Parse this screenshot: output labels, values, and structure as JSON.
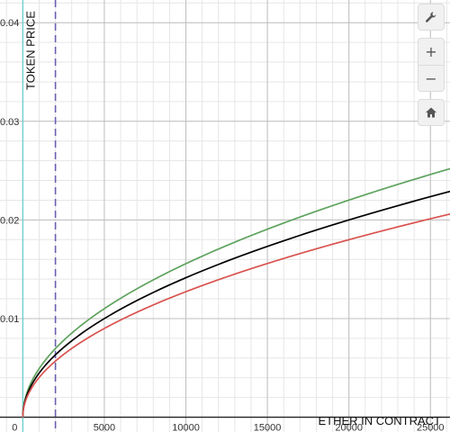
{
  "chart_data": {
    "type": "line",
    "xlabel": "ETHER IN CONTRACT",
    "ylabel": "TOKEN PRICE",
    "xlim": [
      -1400,
      26200
    ],
    "ylim": [
      -0.0015,
      0.0423
    ],
    "x_ticks": [
      {
        "value": 0,
        "label": "0"
      },
      {
        "value": 5000,
        "label": "5000"
      },
      {
        "value": 10000,
        "label": "10000"
      },
      {
        "value": 15000,
        "label": "15000"
      },
      {
        "value": 20000,
        "label": "20000"
      },
      {
        "value": 25000,
        "label": "25000"
      }
    ],
    "y_ticks": [
      {
        "value": 0.01,
        "label": "0.01"
      },
      {
        "value": 0.02,
        "label": "0.02"
      },
      {
        "value": 0.03,
        "label": "0.03"
      },
      {
        "value": 0.04,
        "label": "0.04"
      }
    ],
    "grid": true,
    "minor_grid_step_x": 1000,
    "minor_grid_step_y": 0.002,
    "series": [
      {
        "color": "#5ea35e",
        "x": [
          0,
          100,
          500,
          1000,
          2000,
          5000,
          10000,
          15000,
          20000,
          25000,
          26200
        ],
        "y": [
          0,
          0.00155,
          0.00348,
          0.00492,
          0.00696,
          0.011,
          0.01556,
          0.01906,
          0.02201,
          0.02461,
          0.0252
        ]
      },
      {
        "color": "#000000",
        "x": [
          0,
          100,
          500,
          1000,
          2000,
          5000,
          10000,
          15000,
          20000,
          25000,
          26200
        ],
        "y": [
          0,
          0.00141,
          0.00316,
          0.00447,
          0.00632,
          0.01,
          0.01414,
          0.01732,
          0.02,
          0.02236,
          0.0229
        ]
      },
      {
        "color": "#d9534f",
        "x": [
          0,
          100,
          500,
          1000,
          2000,
          5000,
          10000,
          15000,
          20000,
          25000,
          26200
        ],
        "y": [
          0,
          0.00127,
          0.00285,
          0.00402,
          0.00569,
          0.009,
          0.01273,
          0.01559,
          0.018,
          0.02012,
          0.0206
        ]
      }
    ],
    "vertical_markers": [
      {
        "x": 2000,
        "color": "#6a5fb0",
        "style": "dashed"
      }
    ]
  },
  "colors": {
    "axis": "#222222",
    "major_grid": "#bfbfbf",
    "minor_grid": "#e6e6e6",
    "y_axis_highlight": "#6fcfcf"
  },
  "toolbar": {
    "settings_icon": "wrench-icon",
    "zoom_in_label": "+",
    "zoom_out_label": "−",
    "home_icon": "home-icon"
  }
}
